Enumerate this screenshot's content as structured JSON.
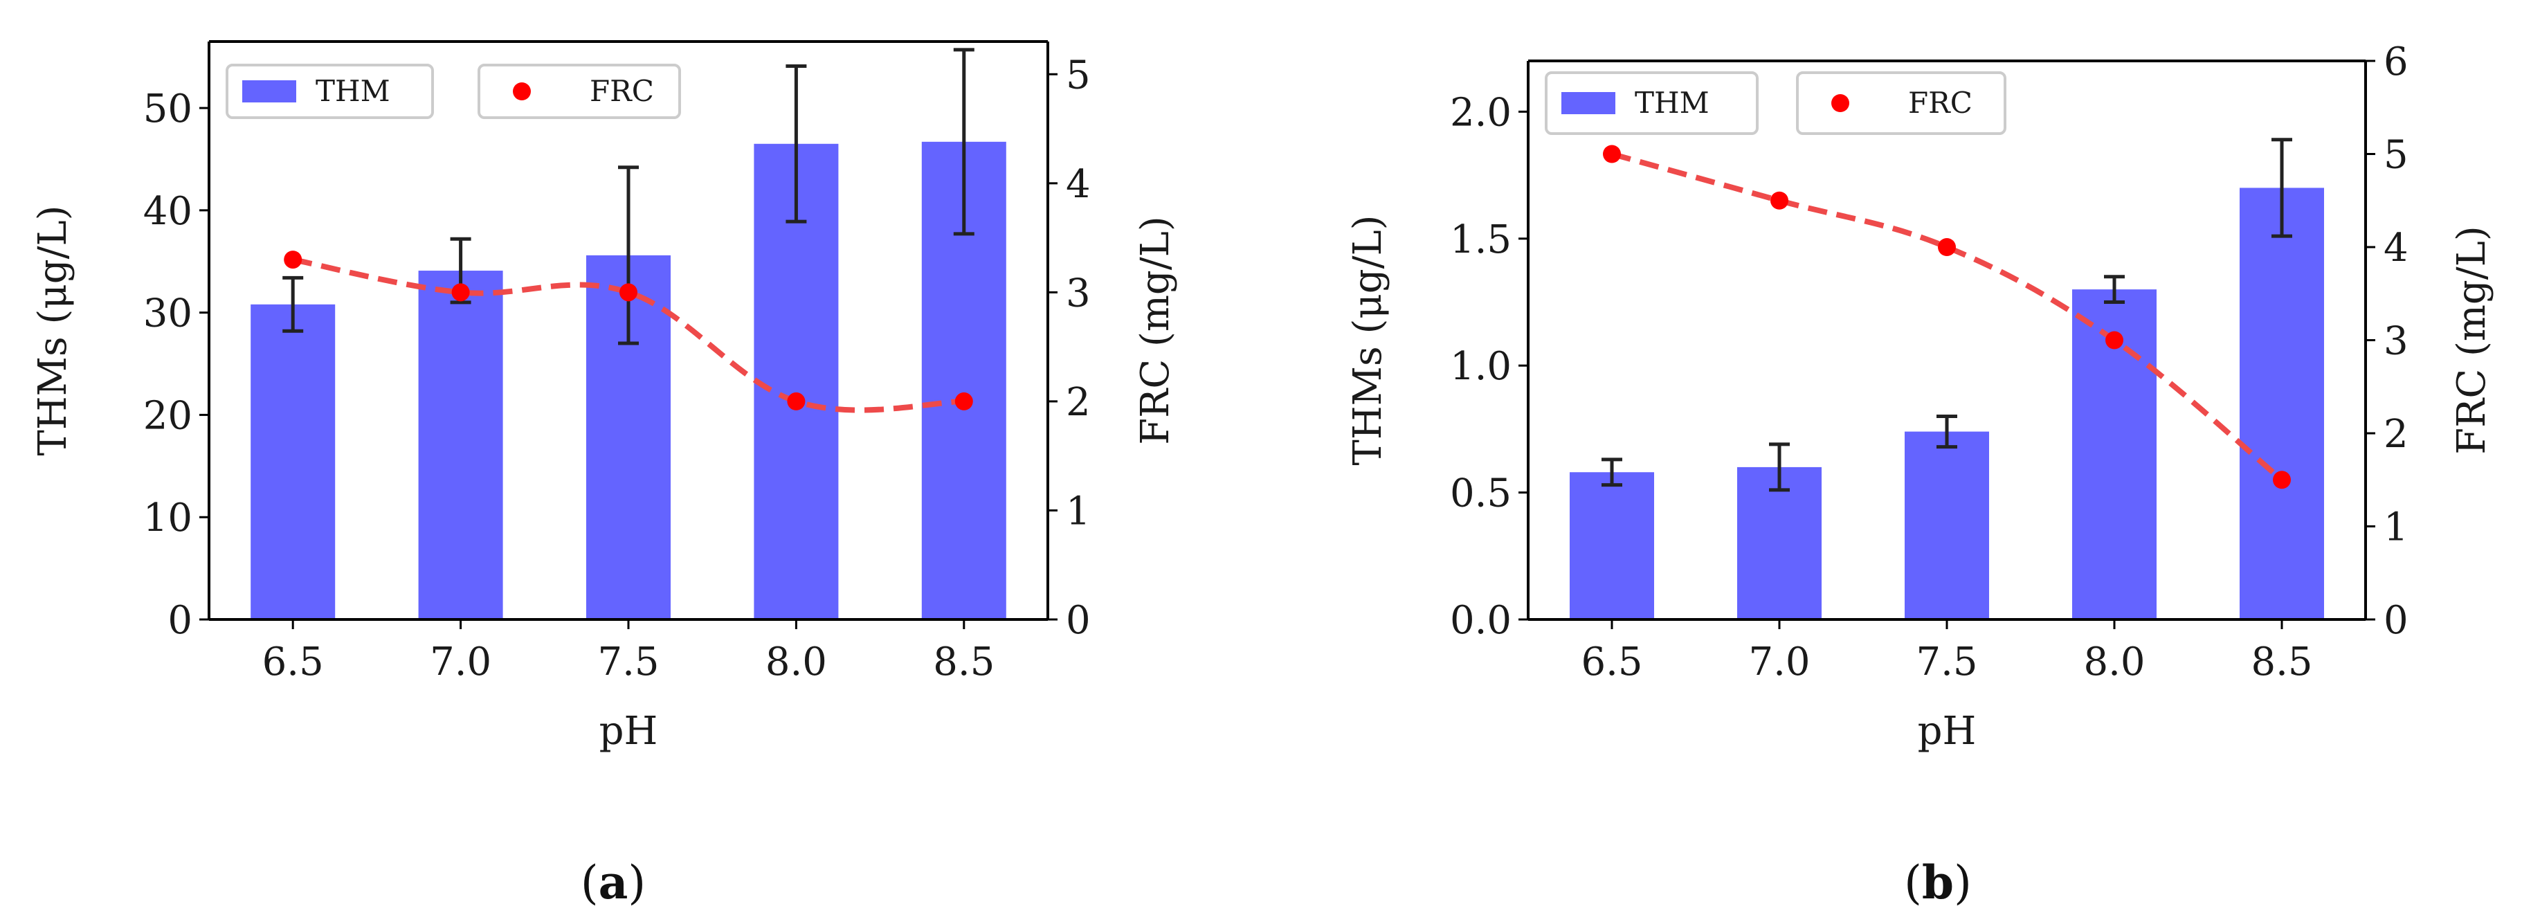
{
  "colors": {
    "bar": "#6464ff",
    "line": "#ee4a4a",
    "point": "#ff0000",
    "errorbar": "#222222",
    "axis": "#000000"
  },
  "chart_data": [
    {
      "type": "bar",
      "caption": {
        "open": "(",
        "letter": "a",
        "close": ")"
      },
      "xlabel": "pH",
      "ylabel": "THMs (μg/L)",
      "ylabel_right": "FRC (mg/L)",
      "categories": [
        "6.5",
        "7.0",
        "7.5",
        "8.0",
        "8.5"
      ],
      "ylim": [
        0,
        56.5
      ],
      "yticks": [
        "0",
        "10",
        "20",
        "30",
        "40",
        "50"
      ],
      "ylim_right": [
        0,
        5.3
      ],
      "yticks_right": [
        "0",
        "1",
        "2",
        "3",
        "4",
        "5"
      ],
      "legend": {
        "placement": "top-left",
        "bar_label": "THM",
        "point_label": "FRC"
      },
      "series": [
        {
          "name": "THM",
          "kind": "bar",
          "axis": "left",
          "values": [
            30.8,
            34.1,
            35.6,
            46.5,
            46.7
          ],
          "errors": [
            2.6,
            3.1,
            8.6,
            7.6,
            9.0
          ]
        },
        {
          "name": "FRC",
          "kind": "line-dashed-markers",
          "axis": "right",
          "values": [
            3.3,
            3.0,
            3.0,
            2.0,
            2.0
          ]
        }
      ]
    },
    {
      "type": "bar",
      "caption": {
        "open": "(",
        "letter": "b",
        "close": ")"
      },
      "xlabel": "pH",
      "ylabel": "THMs (μg/L)",
      "ylabel_right": "FRC (mg/L)",
      "categories": [
        "6.5",
        "7.0",
        "7.5",
        "8.0",
        "8.5"
      ],
      "ylim": [
        0,
        2.2
      ],
      "yticks": [
        "0.0",
        "0.5",
        "1.0",
        "1.5",
        "2.0"
      ],
      "ylim_right": [
        0,
        6
      ],
      "yticks_right": [
        "0",
        "1",
        "2",
        "3",
        "4",
        "5",
        "6"
      ],
      "legend": {
        "placement": "top-left",
        "bar_label": "THM",
        "point_label": "FRC"
      },
      "series": [
        {
          "name": "THM",
          "kind": "bar",
          "axis": "left",
          "values": [
            0.58,
            0.6,
            0.74,
            1.3,
            1.7
          ],
          "errors": [
            0.05,
            0.09,
            0.06,
            0.05,
            0.19
          ]
        },
        {
          "name": "FRC",
          "kind": "line-dashed-markers",
          "axis": "right",
          "values": [
            5.0,
            4.5,
            4.0,
            3.0,
            1.5
          ]
        }
      ]
    }
  ]
}
